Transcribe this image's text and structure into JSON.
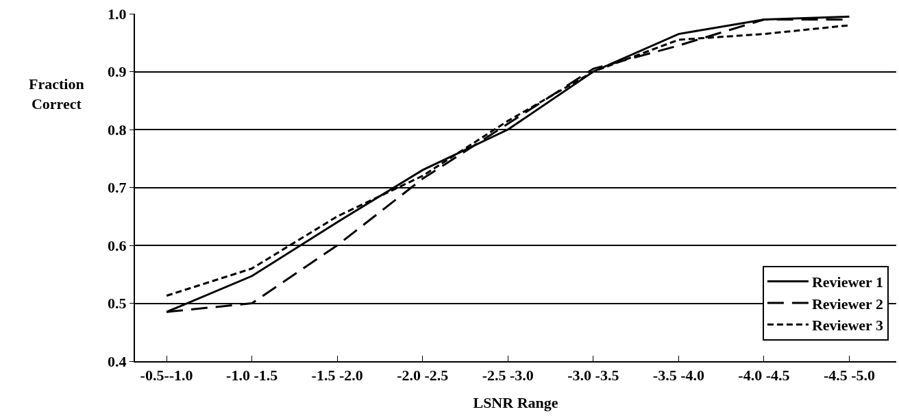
{
  "chart_data": {
    "type": "line",
    "xlabel": "LSNR Range",
    "ylabel": "Fraction Correct",
    "categories": [
      "-0.5--1.0",
      "-1.0 -1.5",
      "-1.5 -2.0",
      "-2.0 -2.5",
      "-2.5 -3.0",
      "-3.0 -3.5",
      "-3.5 -4.0",
      "-4.0 -4.5",
      "-4.5 -5.0"
    ],
    "series": [
      {
        "name": "Reviewer 1",
        "color": "#000000",
        "line_style": "solid",
        "values": [
          0.485,
          0.547,
          0.64,
          0.73,
          0.8,
          0.9,
          0.965,
          0.99,
          0.995
        ]
      },
      {
        "name": "Reviewer 2",
        "color": "#000000",
        "line_style": "dashed",
        "values": [
          0.485,
          0.5,
          0.6,
          0.715,
          0.81,
          0.905,
          0.945,
          0.99,
          0.99
        ]
      },
      {
        "name": "Reviewer 3",
        "color": "#000000",
        "line_style": "dotted",
        "values": [
          0.513,
          0.56,
          0.65,
          0.72,
          0.815,
          0.9,
          0.955,
          0.965,
          0.98
        ]
      }
    ],
    "ylim": [
      0.4,
      1.0
    ],
    "yticks": [
      0.4,
      0.5,
      0.6,
      0.7,
      0.8,
      0.9,
      {
        "value": 1,
        "label": "1.0"
      }
    ],
    "grid": "y",
    "legend": "bottom right",
    "marker": "none"
  }
}
